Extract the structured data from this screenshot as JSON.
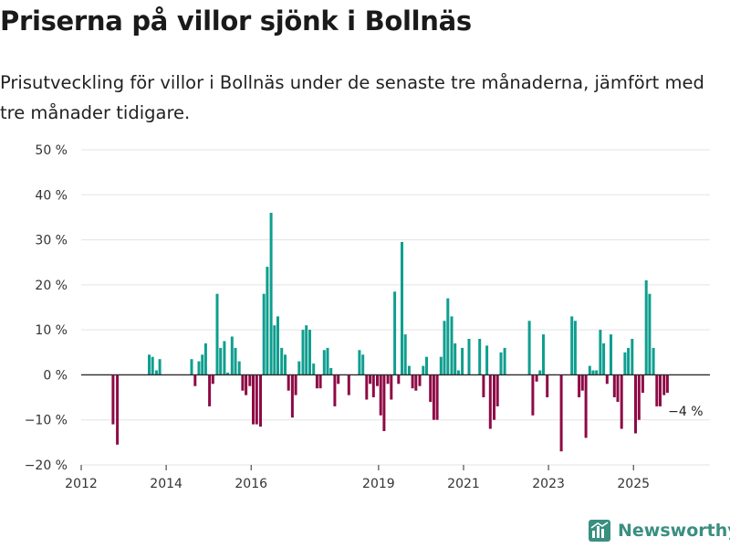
{
  "title": "Priserna på villor sjönk i Bollnäs",
  "subtitle": "Prisutveckling för villor i Bollnäs under de senaste tre månaderna, jämfört med tre månader tidigare.",
  "brand": "Newsworthy",
  "colors": {
    "positive": "#0f9e8f",
    "negative": "#8e0a45",
    "grid": "#e3e3e3",
    "zero": "#2b2b2b",
    "text": "#333333",
    "brand": "#3a8f80"
  },
  "chart_data": {
    "type": "bar",
    "ylim": [
      -20,
      50
    ],
    "yticks": [
      -20,
      -10,
      0,
      10,
      20,
      30,
      40,
      50
    ],
    "ytick_labels": [
      "−20 %",
      "−10 %",
      "0 %",
      "10 %",
      "20 %",
      "30 %",
      "40 %",
      "50 %"
    ],
    "xlim": [
      2012,
      2026.8
    ],
    "xticks": [
      2012,
      2014,
      2016,
      2019,
      2021,
      2023,
      2025
    ],
    "xtick_labels": [
      "2012",
      "2014",
      "2016",
      "2019",
      "2021",
      "2023",
      "2025"
    ],
    "annotation": {
      "x": 2025.6,
      "text": "−4 %"
    },
    "series": [
      {
        "name": "Prisutveckling",
        "x": [
          2012.75,
          2012.85,
          2013.6,
          2013.68,
          2013.77,
          2013.85,
          2014.6,
          2014.68,
          2014.77,
          2014.85,
          2014.93,
          2015.02,
          2015.1,
          2015.2,
          2015.28,
          2015.37,
          2015.45,
          2015.55,
          2015.63,
          2015.72,
          2015.8,
          2015.88,
          2015.97,
          2016.05,
          2016.13,
          2016.22,
          2016.3,
          2016.38,
          2016.47,
          2016.55,
          2016.63,
          2016.72,
          2016.8,
          2016.88,
          2016.97,
          2017.05,
          2017.13,
          2017.22,
          2017.3,
          2017.38,
          2017.47,
          2017.55,
          2017.63,
          2017.72,
          2017.8,
          2017.88,
          2017.97,
          2018.05,
          2018.3,
          2018.55,
          2018.63,
          2018.72,
          2018.8,
          2018.88,
          2018.97,
          2019.05,
          2019.13,
          2019.22,
          2019.3,
          2019.38,
          2019.47,
          2019.55,
          2019.63,
          2019.72,
          2019.8,
          2019.88,
          2019.97,
          2020.05,
          2020.13,
          2020.22,
          2020.3,
          2020.38,
          2020.47,
          2020.55,
          2020.63,
          2020.72,
          2020.8,
          2020.88,
          2020.97,
          2021.13,
          2021.38,
          2021.47,
          2021.55,
          2021.63,
          2021.72,
          2021.8,
          2021.88,
          2021.97,
          2022.55,
          2022.63,
          2022.72,
          2022.8,
          2022.88,
          2022.97,
          2023.3,
          2023.55,
          2023.63,
          2023.72,
          2023.8,
          2023.88,
          2023.97,
          2024.05,
          2024.13,
          2024.22,
          2024.3,
          2024.38,
          2024.47,
          2024.55,
          2024.63,
          2024.72,
          2024.8,
          2024.88,
          2024.97,
          2025.05,
          2025.13,
          2025.22,
          2025.3,
          2025.38,
          2025.47,
          2025.55,
          2025.63,
          2025.72,
          2025.8
        ],
        "values": [
          -11,
          -15.5,
          4.5,
          4,
          1,
          3.5,
          3.5,
          -2.5,
          3,
          4.5,
          7,
          -7,
          -2,
          18,
          6,
          7.5,
          0.5,
          8.5,
          6,
          3,
          -3.5,
          -4.5,
          -2.5,
          -11,
          -11,
          -11.5,
          18,
          24,
          36,
          11,
          13,
          6,
          4.5,
          -3.5,
          -9.5,
          -4.5,
          3,
          10,
          11,
          10,
          2.5,
          -3,
          -3,
          5.5,
          6,
          1.5,
          -7,
          -2,
          -4.5,
          5.5,
          4.5,
          -5.5,
          -2,
          -5,
          -2.5,
          -9,
          -12.5,
          -2,
          -5.5,
          18.5,
          -2,
          29.5,
          9,
          2,
          -3,
          -3.5,
          -2.5,
          2,
          4,
          -6,
          -10,
          -10,
          4,
          12,
          17,
          13,
          7,
          1,
          6,
          8,
          8,
          -5,
          6.5,
          -12,
          -10,
          -7,
          5,
          6,
          12,
          -9,
          -1.5,
          1,
          9,
          -5,
          -17,
          13,
          12,
          -5,
          -3.5,
          -14,
          2,
          1,
          1,
          10,
          7,
          -2,
          9,
          -5,
          -6,
          -12,
          5,
          6,
          8,
          -13,
          -10,
          -4,
          21,
          18,
          6,
          -7,
          -7,
          -4.5,
          -4
        ]
      }
    ]
  }
}
